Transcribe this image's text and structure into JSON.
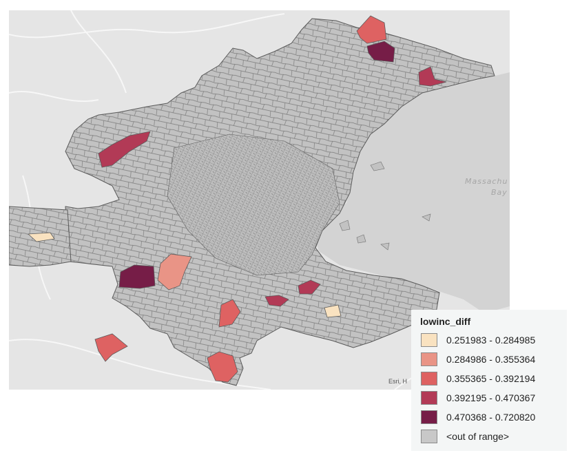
{
  "map": {
    "water_label_line1": "Massachu",
    "water_label_line2": "Bay",
    "attribution": "Esri, H",
    "basemap_color": "#e5e5e5",
    "water_color": "#d3d3d3",
    "region_fill": "#c2c2c2",
    "region_stroke": "#6e6e6e"
  },
  "legend": {
    "title": "lowinc_diff",
    "items": [
      {
        "label": "0.251983 - 0.284985",
        "color": "#f9e2c0"
      },
      {
        "label": "0.284986 - 0.355364",
        "color": "#e99486"
      },
      {
        "label": "0.355365 - 0.392194",
        "color": "#de6262"
      },
      {
        "label": "0.392195 - 0.470367",
        "color": "#b23a56"
      },
      {
        "label": "0.470368 - 0.720820",
        "color": "#761d47"
      },
      {
        "label": "<out of range>",
        "color": "#c8c8c8"
      }
    ]
  }
}
